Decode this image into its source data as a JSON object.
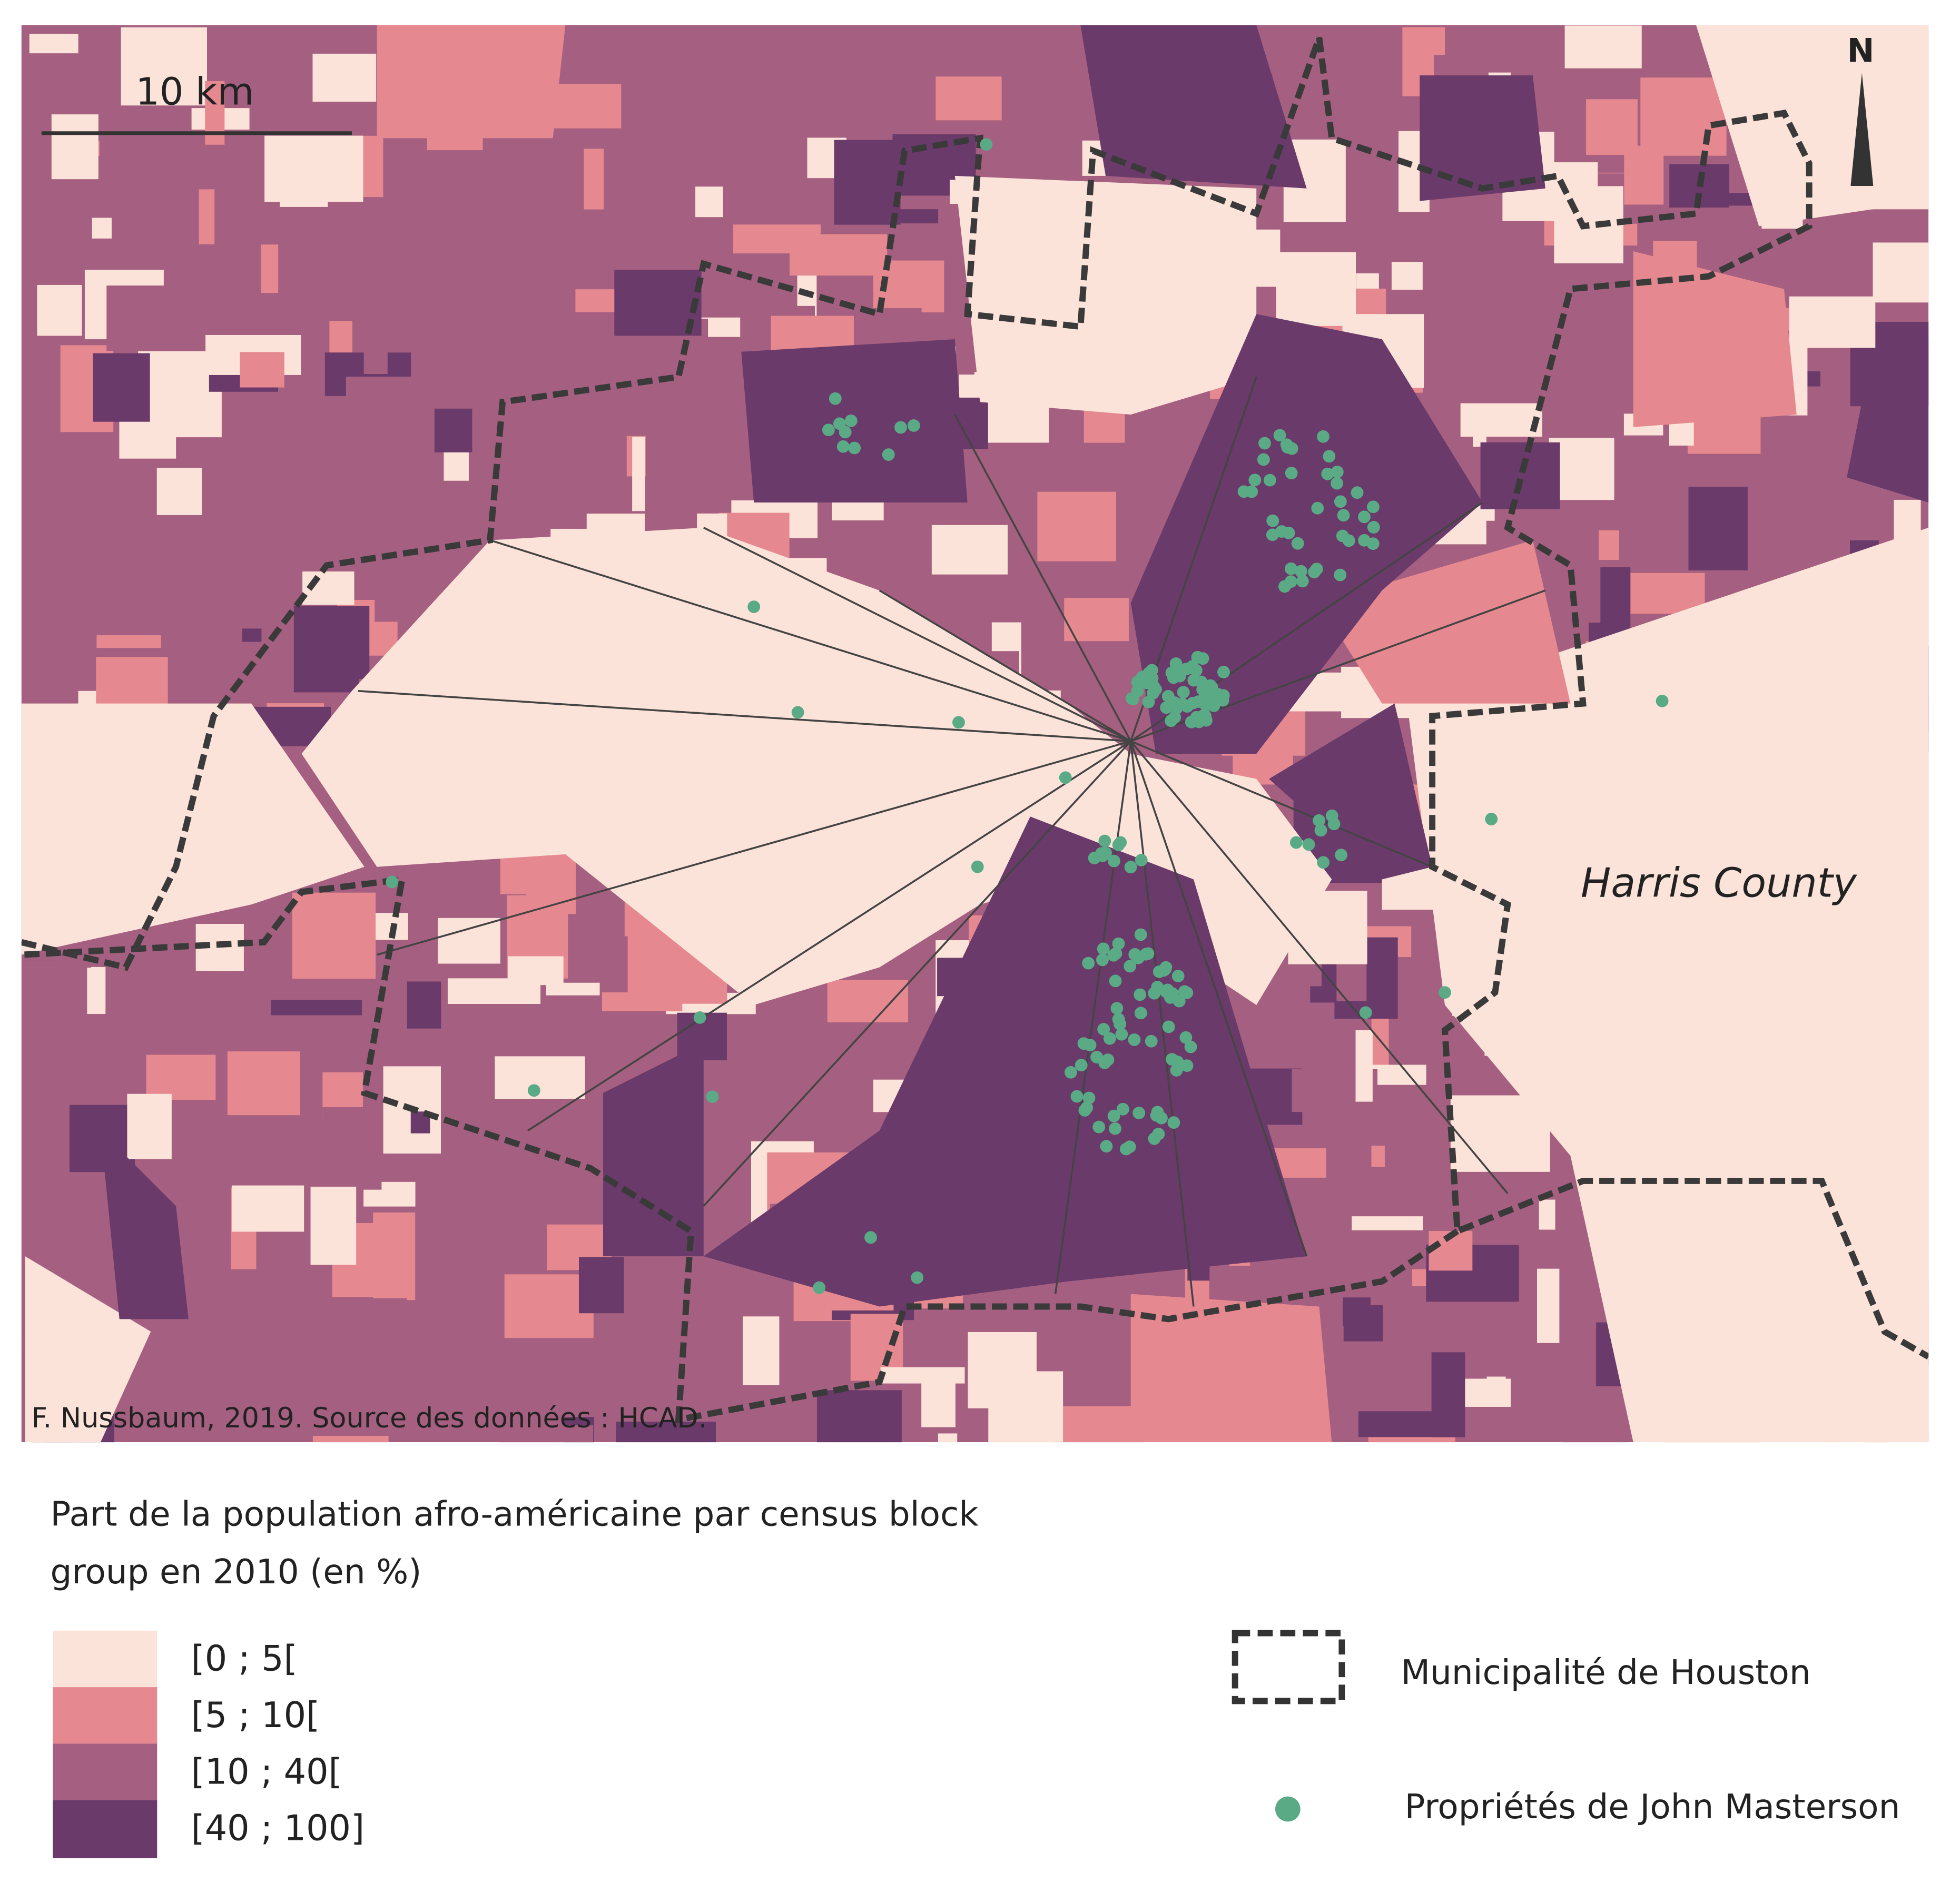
{
  "map": {
    "scale_bar": "10 km",
    "north": "N",
    "area_label": "Harris County",
    "credit": "F. Nussbaum, 2019. Source des données : HCAD.",
    "legend": {
      "title_lines": [
        "Part de la population afro-américaine par census block",
        "group en 2010 (en %)"
      ],
      "classes": [
        {
          "label": "[0 ; 5[",
          "color": "#fce3d9"
        },
        {
          "label": "[5 ; 10[",
          "color": "#e6888f"
        },
        {
          "label": "[10 ; 40[",
          "color": "#a55f80"
        },
        {
          "label": "[40 ; 100]",
          "color": "#6a3a6a"
        }
      ],
      "boundary": "Municipalité de Houston",
      "properties": "Propriétés de John Masterson",
      "properties_color": "#5aaa86"
    }
  }
}
